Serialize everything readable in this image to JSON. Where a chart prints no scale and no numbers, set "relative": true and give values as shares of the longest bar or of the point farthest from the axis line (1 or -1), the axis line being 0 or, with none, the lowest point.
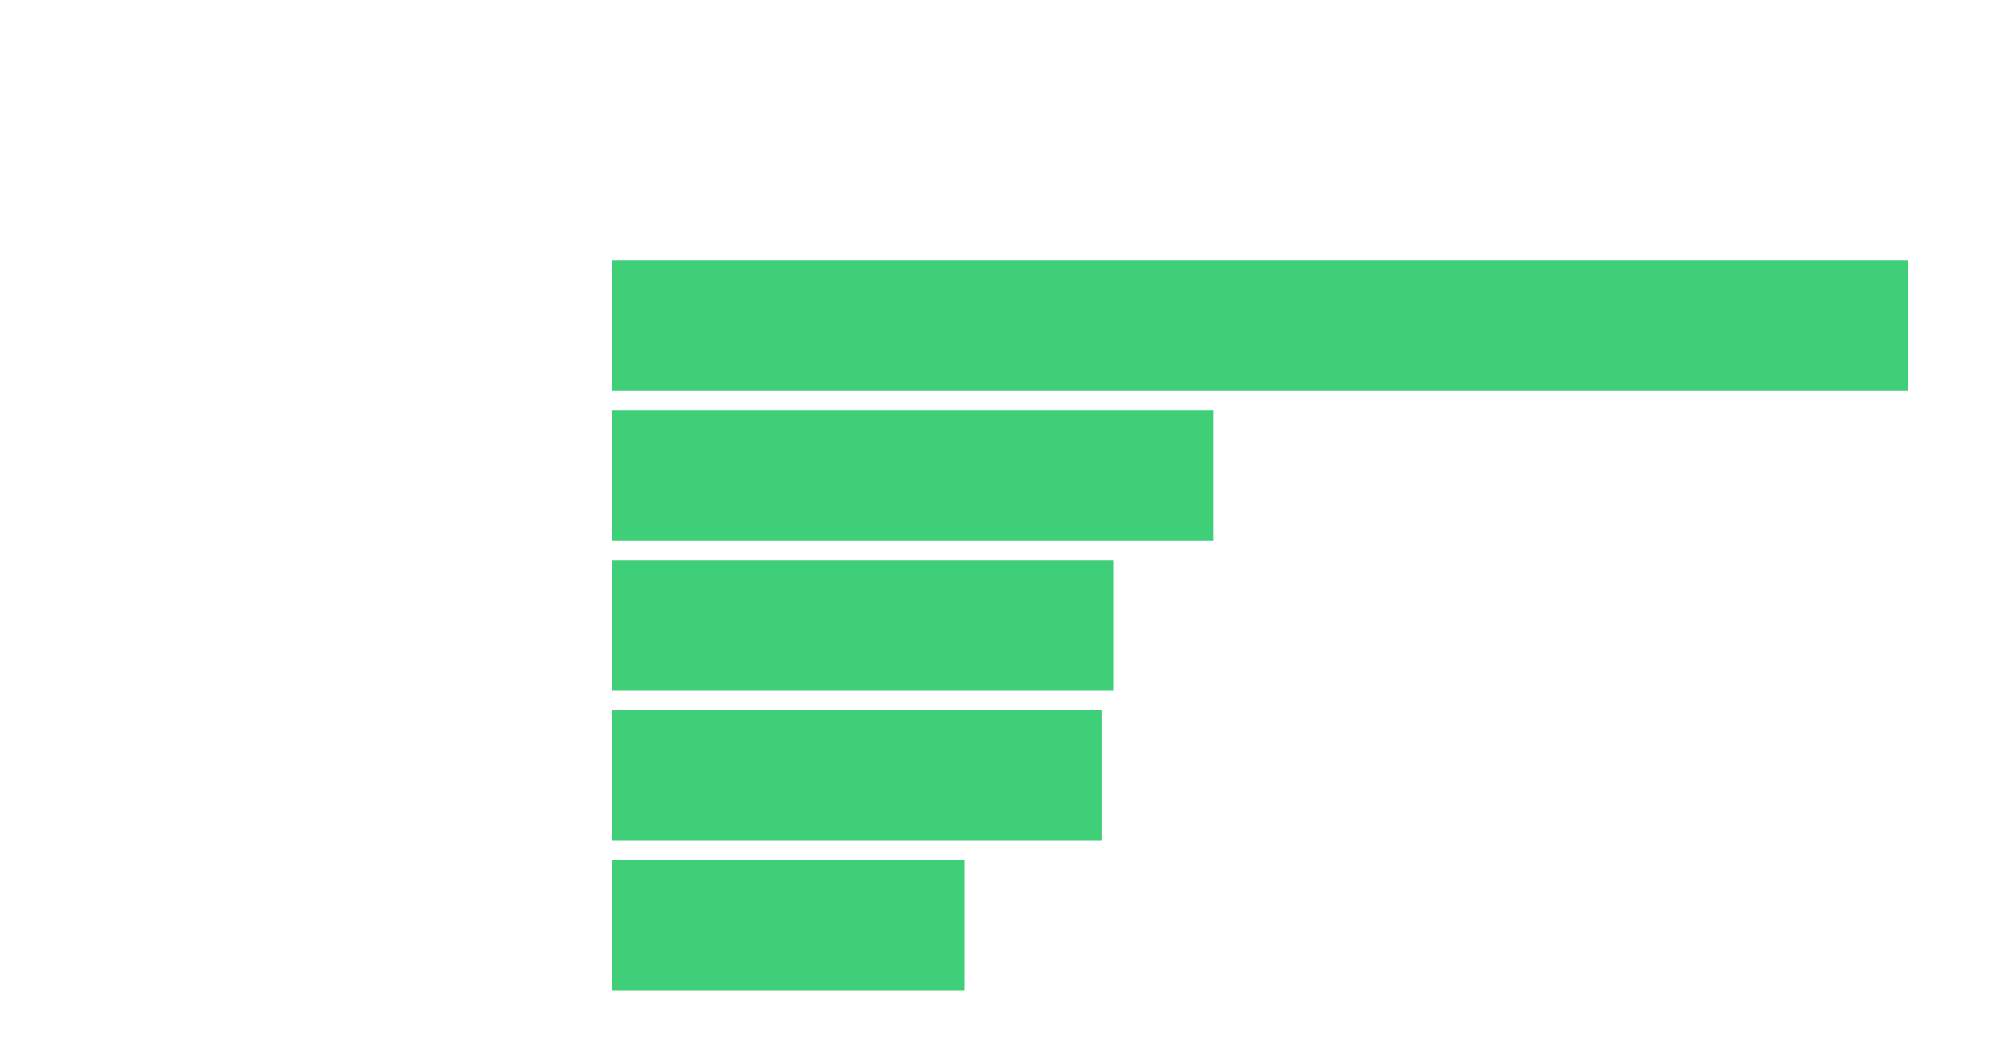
{
  "chart_data": {
    "type": "bar",
    "orientation": "horizontal",
    "relative": true,
    "categories": [
      null,
      null,
      null,
      null,
      null
    ],
    "values": [
      1,
      0.464,
      0.387,
      0.378,
      0.272
    ],
    "color": "#3ecf78"
  }
}
